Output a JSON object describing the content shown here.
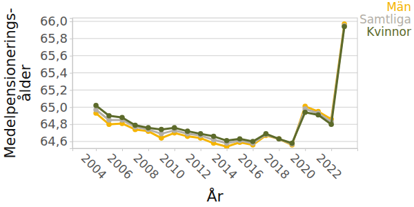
{
  "chart_data": {
    "type": "line",
    "x_label": "År",
    "y_label": "Medelpensionerings-\nålder",
    "x": [
      2004,
      2005,
      2006,
      2007,
      2008,
      2009,
      2010,
      2011,
      2012,
      2013,
      2014,
      2015,
      2016,
      2017,
      2018,
      2019,
      2020,
      2021,
      2022,
      2023
    ],
    "series": [
      {
        "name": "Män",
        "color": "#f5b400",
        "marker": "circle",
        "values": [
          64.93,
          64.8,
          64.81,
          64.74,
          64.72,
          64.64,
          64.7,
          64.66,
          64.64,
          64.58,
          64.54,
          64.59,
          64.56,
          64.67,
          64.63,
          64.56,
          65.01,
          64.95,
          64.86,
          65.97
        ]
      },
      {
        "name": "Samtliga",
        "color": "#b3afa7",
        "marker": "circle",
        "values": [
          64.97,
          64.85,
          64.85,
          64.77,
          64.74,
          64.69,
          64.73,
          64.69,
          64.67,
          64.62,
          64.58,
          64.61,
          64.58,
          64.68,
          64.63,
          64.57,
          64.98,
          64.93,
          64.83,
          65.95
        ]
      },
      {
        "name": "Kvinnor",
        "color": "#5c6a2a",
        "marker": "circle",
        "values": [
          65.02,
          64.9,
          64.88,
          64.79,
          64.76,
          64.74,
          64.76,
          64.72,
          64.69,
          64.66,
          64.61,
          64.63,
          64.6,
          64.69,
          64.63,
          64.58,
          64.94,
          64.91,
          64.8,
          65.94
        ]
      }
    ],
    "xlim": [
      2002.2,
      2024
    ],
    "xticks": [
      2004,
      2006,
      2008,
      2010,
      2012,
      2014,
      2016,
      2018,
      2020,
      2022
    ],
    "ylim": [
      64.52,
      66.04
    ],
    "yticks": [
      {
        "value": 64.6,
        "label": "64,6"
      },
      {
        "value": 64.8,
        "label": "64,8"
      },
      {
        "value": 65.0,
        "label": "65,0"
      },
      {
        "value": 65.2,
        "label": "65,2"
      },
      {
        "value": 65.4,
        "label": "65,4"
      },
      {
        "value": 65.6,
        "label": "65,6"
      },
      {
        "value": 65.8,
        "label": "65,8"
      },
      {
        "value": 66.0,
        "label": "66,0"
      }
    ],
    "grid": true,
    "legend": "top right"
  }
}
